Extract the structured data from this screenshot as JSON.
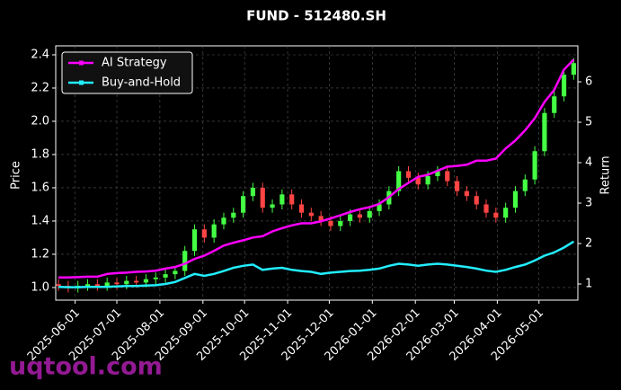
{
  "chart_data": {
    "type": "candlestick",
    "title": "FUND - 512480.SH",
    "watermark": "uqtool.com",
    "ylabel": "Price",
    "y2label": "Return",
    "x": [
      "2025-05-20",
      "2025-05-27",
      "2025-06-03",
      "2025-06-10",
      "2025-06-17",
      "2025-06-24",
      "2025-07-01",
      "2025-07-08",
      "2025-07-15",
      "2025-07-22",
      "2025-07-29",
      "2025-08-05",
      "2025-08-12",
      "2025-08-19",
      "2025-08-26",
      "2025-09-02",
      "2025-09-09",
      "2025-09-16",
      "2025-09-23",
      "2025-09-30",
      "2025-10-07",
      "2025-10-14",
      "2025-10-21",
      "2025-10-28",
      "2025-11-04",
      "2025-11-11",
      "2025-11-18",
      "2025-11-25",
      "2025-12-02",
      "2025-12-09",
      "2025-12-16",
      "2025-12-23",
      "2025-12-30",
      "2026-01-06",
      "2026-01-13",
      "2026-01-20",
      "2026-01-27",
      "2026-02-03",
      "2026-02-10",
      "2026-02-17",
      "2026-02-24",
      "2026-03-03",
      "2026-03-10",
      "2026-03-17",
      "2026-03-24",
      "2026-03-31",
      "2026-04-07",
      "2026-04-14",
      "2026-04-21",
      "2026-04-28",
      "2026-05-05",
      "2026-05-12",
      "2026-05-19",
      "2026-05-26"
    ],
    "open": [
      1.02,
      1.01,
      1.0,
      1.01,
      1.02,
      1.01,
      1.03,
      1.02,
      1.04,
      1.03,
      1.05,
      1.06,
      1.08,
      1.1,
      1.22,
      1.35,
      1.3,
      1.38,
      1.42,
      1.45,
      1.55,
      1.6,
      1.48,
      1.5,
      1.56,
      1.5,
      1.45,
      1.43,
      1.4,
      1.37,
      1.4,
      1.44,
      1.42,
      1.46,
      1.5,
      1.58,
      1.7,
      1.66,
      1.62,
      1.67,
      1.7,
      1.64,
      1.58,
      1.55,
      1.5,
      1.45,
      1.42,
      1.48,
      1.58,
      1.65,
      1.82,
      2.05,
      2.15,
      2.28
    ],
    "high": [
      1.05,
      1.04,
      1.04,
      1.05,
      1.05,
      1.06,
      1.06,
      1.07,
      1.07,
      1.08,
      1.09,
      1.11,
      1.13,
      1.25,
      1.38,
      1.38,
      1.41,
      1.45,
      1.48,
      1.58,
      1.63,
      1.63,
      1.53,
      1.59,
      1.59,
      1.53,
      1.48,
      1.46,
      1.43,
      1.43,
      1.47,
      1.47,
      1.49,
      1.53,
      1.61,
      1.73,
      1.73,
      1.69,
      1.7,
      1.73,
      1.73,
      1.67,
      1.61,
      1.58,
      1.53,
      1.48,
      1.51,
      1.61,
      1.68,
      1.85,
      2.08,
      2.18,
      2.31,
      2.38
    ],
    "low": [
      0.98,
      0.97,
      0.97,
      0.98,
      0.98,
      0.98,
      0.99,
      0.99,
      1.0,
      1.0,
      1.02,
      1.03,
      1.05,
      1.07,
      1.19,
      1.27,
      1.27,
      1.35,
      1.39,
      1.42,
      1.52,
      1.45,
      1.45,
      1.47,
      1.47,
      1.42,
      1.4,
      1.37,
      1.34,
      1.34,
      1.37,
      1.39,
      1.39,
      1.43,
      1.47,
      1.55,
      1.63,
      1.59,
      1.59,
      1.64,
      1.61,
      1.55,
      1.52,
      1.47,
      1.42,
      1.39,
      1.39,
      1.45,
      1.55,
      1.62,
      1.79,
      2.02,
      2.12,
      2.25
    ],
    "close": [
      1.01,
      1.0,
      1.01,
      1.02,
      1.01,
      1.03,
      1.02,
      1.04,
      1.03,
      1.05,
      1.06,
      1.08,
      1.1,
      1.22,
      1.35,
      1.3,
      1.38,
      1.42,
      1.45,
      1.55,
      1.6,
      1.48,
      1.5,
      1.56,
      1.5,
      1.45,
      1.43,
      1.4,
      1.37,
      1.4,
      1.44,
      1.42,
      1.46,
      1.5,
      1.58,
      1.7,
      1.66,
      1.62,
      1.67,
      1.7,
      1.64,
      1.58,
      1.55,
      1.5,
      1.45,
      1.42,
      1.48,
      1.58,
      1.65,
      1.82,
      2.05,
      2.15,
      2.28,
      2.35
    ],
    "up_color": "#44ff44",
    "down_color": "#ff4444",
    "series": [
      {
        "name": "AI Strategy",
        "color": "#ff00ff",
        "axis": "y2",
        "values": [
          1.16,
          1.16,
          1.17,
          1.18,
          1.18,
          1.25,
          1.27,
          1.28,
          1.3,
          1.31,
          1.33,
          1.38,
          1.42,
          1.5,
          1.62,
          1.7,
          1.82,
          1.95,
          2.02,
          2.08,
          2.15,
          2.18,
          2.3,
          2.38,
          2.45,
          2.5,
          2.5,
          2.55,
          2.62,
          2.7,
          2.78,
          2.85,
          2.9,
          2.98,
          3.15,
          3.35,
          3.5,
          3.65,
          3.7,
          3.8,
          3.9,
          3.92,
          3.95,
          4.05,
          4.05,
          4.1,
          4.35,
          4.55,
          4.8,
          5.1,
          5.5,
          5.8,
          6.3,
          6.55
        ]
      },
      {
        "name": "Buy-and-Hold",
        "color": "#22eeff",
        "axis": "y2",
        "values": [
          0.93,
          0.92,
          0.92,
          0.93,
          0.93,
          0.93,
          0.94,
          0.95,
          0.95,
          0.96,
          0.97,
          1.0,
          1.05,
          1.15,
          1.25,
          1.2,
          1.25,
          1.32,
          1.4,
          1.45,
          1.48,
          1.35,
          1.38,
          1.4,
          1.35,
          1.32,
          1.3,
          1.25,
          1.28,
          1.3,
          1.32,
          1.33,
          1.35,
          1.38,
          1.45,
          1.5,
          1.48,
          1.45,
          1.48,
          1.5,
          1.48,
          1.45,
          1.42,
          1.38,
          1.33,
          1.3,
          1.35,
          1.42,
          1.48,
          1.58,
          1.7,
          1.78,
          1.9,
          2.05
        ]
      }
    ],
    "xlim": [
      "2025-05-18",
      "2026-05-29"
    ],
    "xticks": [
      "2025-06-01",
      "2025-07-01",
      "2025-08-01",
      "2025-09-01",
      "2025-10-01",
      "2025-11-01",
      "2025-12-01",
      "2026-01-01",
      "2026-02-01",
      "2026-03-01",
      "2026-04-01",
      "2026-05-01"
    ],
    "ylim": [
      0.924,
      2.454
    ],
    "yticks": [
      {
        "value": 1.0,
        "label": "1.0"
      },
      1.2,
      1.4,
      1.6,
      1.8,
      {
        "value": 2.0,
        "label": "2.0"
      },
      2.2,
      2.4
    ],
    "y2lim": [
      0.6,
      6.89
    ],
    "y2ticks": [
      1,
      2,
      3,
      4,
      5,
      6
    ],
    "grid": true,
    "legend": "upper left"
  }
}
